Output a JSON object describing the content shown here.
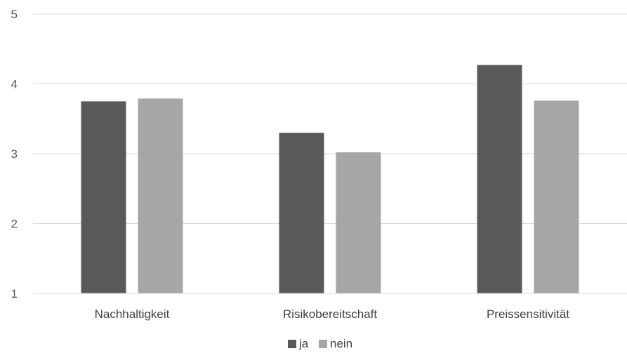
{
  "chart_data": {
    "type": "bar",
    "title": "",
    "xlabel": "",
    "ylabel": "",
    "categories": [
      "Nachhaltigkeit",
      "Risikobereitschaft",
      "Preissensitivität"
    ],
    "series": [
      {
        "name": "ja",
        "values": [
          3.75,
          3.3,
          4.27
        ],
        "color": "#595959"
      },
      {
        "name": "nein",
        "values": [
          3.79,
          3.02,
          3.76
        ],
        "color": "#a6a6a6"
      }
    ],
    "ylim": [
      1,
      5
    ],
    "yticks": [
      "1",
      "2",
      "3",
      "4",
      "5"
    ],
    "grid": true,
    "legend_position": "bottom"
  }
}
